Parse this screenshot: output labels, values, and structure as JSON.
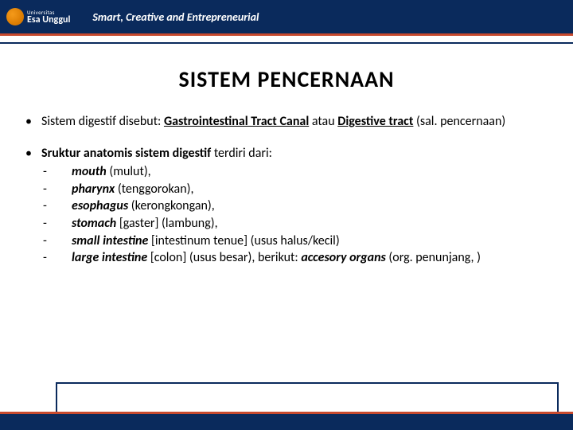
{
  "header": {
    "logo_univ": "Universitas",
    "logo_name": "Esa Unggul",
    "tagline": "Smart, Creative and Entrepreneurial"
  },
  "title": "SISTEM  PENCERNAAN",
  "bullet1": {
    "pre": "Sistem digestif disebut: ",
    "bold1": "Gastrointestinal Tract Canal",
    "mid": " atau ",
    "bold2": "Digestive tract",
    "post": " (sal. pencernaan)"
  },
  "bullet2": {
    "lead_bold": "Sruktur anatomis sistem digestif",
    "lead_rest": " terdiri dari:",
    "items": [
      {
        "b": "mouth",
        "r": " (mulut),"
      },
      {
        "b": "pharynx",
        "r": " (tenggorokan),"
      },
      {
        "b": "esophagus",
        "r": " (kerongkongan),"
      },
      {
        "b": "stomach",
        "r": " [gaster] (lambung),"
      },
      {
        "b": "small intestine",
        "r": " [intestinum tenue] (usus halus/kecil)"
      }
    ],
    "last": {
      "b1": "large intestine",
      "mid": " [colon] (usus besar), berikut: ",
      "b2": "accesory organs",
      "tail": " (org. penunjang, )"
    }
  },
  "colors": {
    "navy": "#0a2a5c",
    "red": "#c84a2e",
    "orange": "#f59a1a",
    "text": "#000000",
    "bg": "#ffffff"
  }
}
